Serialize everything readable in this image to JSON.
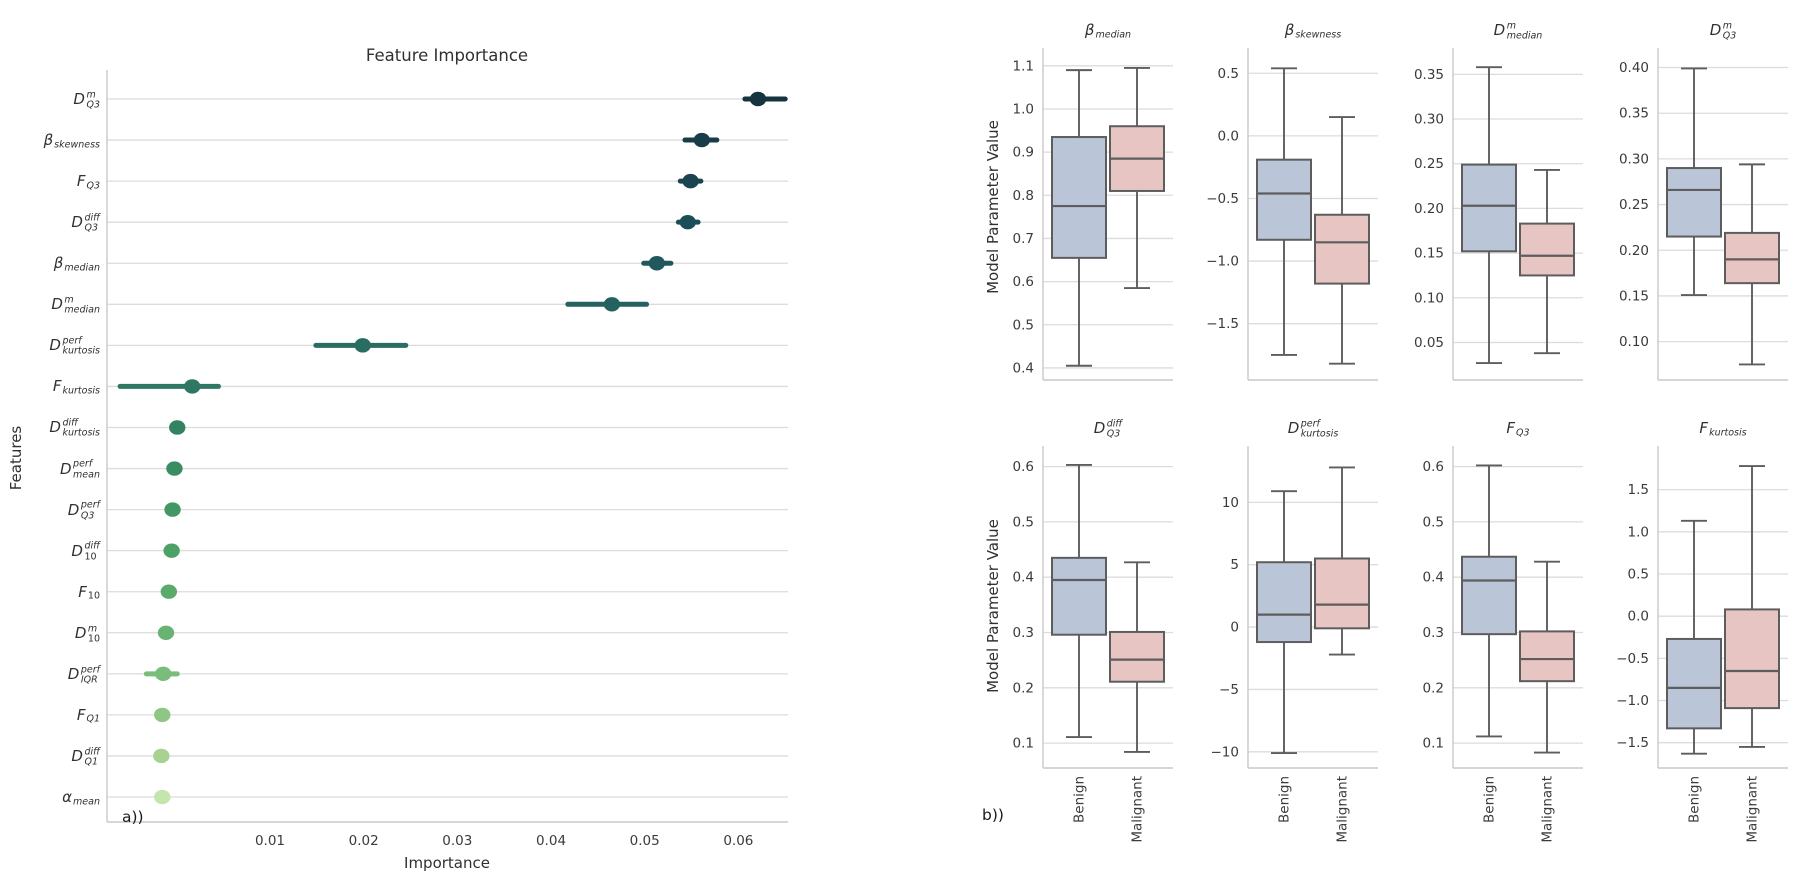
{
  "figure": {
    "background": "#ffffff",
    "grid_color": "#dcdcdc",
    "spine_color": "#c9c9c9",
    "text_color": "#3b3b3b"
  },
  "chart_data": [
    {
      "id": "feature-importance",
      "type": "scatter",
      "title": "Feature Importance",
      "xlabel": "Importance",
      "ylabel": "Features",
      "panel_label": "a))",
      "grid": "horizontal",
      "legend": "none",
      "xlim": [
        -0.0074,
        0.0653
      ],
      "xtick_vals": [
        0.01,
        0.02,
        0.03,
        0.04,
        0.05,
        0.06
      ],
      "xtick_labels": [
        "0.01",
        "0.02",
        "0.03",
        "0.04",
        "0.05",
        "0.06"
      ],
      "features": [
        {
          "label": "D_Q3^m",
          "base": "D",
          "sup": "m",
          "sub": "Q3",
          "importance": 0.0621,
          "ci": [
            0.0607,
            0.065
          ],
          "color": "#17333f"
        },
        {
          "label": "β_skewness",
          "base": "β",
          "sup": "",
          "sub": "skewness",
          "importance": 0.0561,
          "ci": [
            0.0543,
            0.0577
          ],
          "color": "#183c48"
        },
        {
          "label": "F_Q3",
          "base": "F",
          "sup": "",
          "sub": "Q3",
          "importance": 0.0549,
          "ci": [
            0.0538,
            0.056
          ],
          "color": "#1a4550"
        },
        {
          "label": "D_Q3^diff",
          "base": "D",
          "sup": "diff",
          "sub": "Q3",
          "importance": 0.0546,
          "ci": [
            0.0536,
            0.0557
          ],
          "color": "#1c4e57"
        },
        {
          "label": "β_median",
          "base": "β",
          "sup": "",
          "sub": "median",
          "importance": 0.0513,
          "ci": [
            0.0499,
            0.0528
          ],
          "color": "#20585d"
        },
        {
          "label": "D_median^m",
          "base": "D",
          "sup": "m",
          "sub": "median",
          "importance": 0.0465,
          "ci": [
            0.0418,
            0.0502
          ],
          "color": "#246260"
        },
        {
          "label": "D_kurtosis^perf",
          "base": "D",
          "sup": "perf",
          "sub": "kurtosis",
          "importance": 0.0199,
          "ci": [
            0.0149,
            0.0245
          ],
          "color": "#296d62"
        },
        {
          "label": "F_kurtosis",
          "base": "F",
          "sup": "",
          "sub": "kurtosis",
          "importance": 0.0017,
          "ci": [
            -0.006,
            0.0045
          ],
          "color": "#2e7863"
        },
        {
          "label": "D_kurtosis^diff",
          "base": "D",
          "sup": "diff",
          "sub": "kurtosis",
          "importance": 0.0001,
          "ci": [
            -0.0004,
            0.0006
          ],
          "color": "#338363"
        },
        {
          "label": "D_mean^perf",
          "base": "D",
          "sup": "perf",
          "sub": "mean",
          "importance": -0.0002,
          "ci": [
            -0.0006,
            0.0002
          ],
          "color": "#3a8d63"
        },
        {
          "label": "D_Q3^perf",
          "base": "D",
          "sup": "perf",
          "sub": "Q3",
          "importance": -0.0004,
          "ci": [
            -0.0008,
            0.0
          ],
          "color": "#429763"
        },
        {
          "label": "D_10^diff",
          "base": "D",
          "sup": "diff",
          "sub": "10",
          "importance": -0.0005,
          "ci": [
            -0.0009,
            -0.0001
          ],
          "color": "#4ca167"
        },
        {
          "label": "F_10",
          "base": "F",
          "sup": "",
          "sub": "10",
          "importance": -0.0008,
          "ci": [
            -0.0012,
            -0.0004
          ],
          "color": "#59aa6b"
        },
        {
          "label": "D_10^m",
          "base": "D",
          "sup": "m",
          "sub": "10",
          "importance": -0.0011,
          "ci": [
            -0.0015,
            -0.0007
          ],
          "color": "#68b371"
        },
        {
          "label": "D_IQR^perf",
          "base": "D",
          "sup": "perf",
          "sub": "IQR",
          "importance": -0.0014,
          "ci": [
            -0.0032,
            0.0001
          ],
          "color": "#7abc79"
        },
        {
          "label": "F_Q1",
          "base": "F",
          "sup": "",
          "sub": "Q1",
          "importance": -0.0015,
          "ci": [
            -0.0018,
            -0.0012
          ],
          "color": "#8ec683"
        },
        {
          "label": "D_Q1^diff",
          "base": "D",
          "sup": "diff",
          "sub": "Q1",
          "importance": -0.0016,
          "ci": [
            -0.0019,
            -0.0013
          ],
          "color": "#a7d290"
        },
        {
          "label": "α_mean",
          "base": "α",
          "sup": "",
          "sub": "mean",
          "importance": -0.0015,
          "ci": [
            -0.0017,
            -0.0013
          ],
          "color": "#c6e5ad"
        }
      ]
    },
    {
      "id": "model-parameter-boxplots",
      "type": "boxplot",
      "ylabel": "Model Parameter Value",
      "panel_label": "b))",
      "categories": [
        "Benign",
        "Malignant"
      ],
      "series_colors": {
        "Benign": "#bac6d8",
        "Malignant": "#e6c5c3"
      },
      "edge_color": "#5d5d5d",
      "subplots": [
        {
          "title": "β_median",
          "base": "β",
          "sup": "",
          "sub": "median",
          "ylim": [
            0.372,
            1.132
          ],
          "ytick_vals": [
            1.1,
            1.0,
            0.9,
            0.8,
            0.7,
            0.6,
            0.5,
            0.4
          ],
          "ytick_labels": [
            "1.1",
            "1.0",
            "0.9",
            "0.8",
            "0.7",
            "0.6",
            "0.5",
            "0.4"
          ],
          "boxes": [
            {
              "category": "Benign",
              "whislo": 0.405,
              "q1": 0.655,
              "med": 0.775,
              "q3": 0.935,
              "whishi": 1.09
            },
            {
              "category": "Malignant",
              "whislo": 0.585,
              "q1": 0.81,
              "med": 0.885,
              "q3": 0.96,
              "whishi": 1.095
            }
          ]
        },
        {
          "title": "β_skewness",
          "base": "β",
          "sup": "",
          "sub": "skewness",
          "ylim": [
            -1.95,
            0.67
          ],
          "ytick_vals": [
            0.5,
            0.0,
            -0.5,
            -1.0,
            -1.5
          ],
          "ytick_labels": [
            "0.5",
            "0.0",
            "−0.5",
            "−1.0",
            "−1.5"
          ],
          "boxes": [
            {
              "category": "Benign",
              "whislo": -1.75,
              "q1": -0.83,
              "med": -0.46,
              "q3": -0.19,
              "whishi": 0.54
            },
            {
              "category": "Malignant",
              "whislo": -1.82,
              "q1": -1.18,
              "med": -0.85,
              "q3": -0.63,
              "whishi": 0.15
            }
          ]
        },
        {
          "title": "D_median^m",
          "base": "D",
          "sup": "m",
          "sub": "median",
          "ylim": [
            0.008,
            0.375
          ],
          "ytick_vals": [
            0.35,
            0.3,
            0.25,
            0.2,
            0.15,
            0.1,
            0.05
          ],
          "ytick_labels": [
            "0.35",
            "0.30",
            "0.25",
            "0.20",
            "0.15",
            "0.10",
            "0.05"
          ],
          "boxes": [
            {
              "category": "Benign",
              "whislo": 0.027,
              "q1": 0.152,
              "med": 0.203,
              "q3": 0.249,
              "whishi": 0.358
            },
            {
              "category": "Malignant",
              "whislo": 0.038,
              "q1": 0.125,
              "med": 0.147,
              "q3": 0.183,
              "whishi": 0.243
            }
          ]
        },
        {
          "title": "D_Q3^m",
          "base": "D",
          "sup": "m",
          "sub": "Q3",
          "ylim": [
            0.058,
            0.417
          ],
          "ytick_vals": [
            0.4,
            0.35,
            0.3,
            0.25,
            0.2,
            0.15,
            0.1
          ],
          "ytick_labels": [
            "0.40",
            "0.35",
            "0.30",
            "0.25",
            "0.20",
            "0.15",
            "0.10"
          ],
          "boxes": [
            {
              "category": "Benign",
              "whislo": 0.151,
              "q1": 0.215,
              "med": 0.266,
              "q3": 0.29,
              "whishi": 0.399
            },
            {
              "category": "Malignant",
              "whislo": 0.075,
              "q1": 0.164,
              "med": 0.19,
              "q3": 0.219,
              "whishi": 0.294
            }
          ]
        },
        {
          "title": "D_Q3^diff",
          "base": "D",
          "sup": "diff",
          "sub": "Q3",
          "ylim": [
            0.055,
            0.63
          ],
          "ytick_vals": [
            0.6,
            0.5,
            0.4,
            0.3,
            0.2,
            0.1
          ],
          "ytick_labels": [
            "0.6",
            "0.5",
            "0.4",
            "0.3",
            "0.2",
            "0.1"
          ],
          "boxes": [
            {
              "category": "Benign",
              "whislo": 0.111,
              "q1": 0.296,
              "med": 0.395,
              "q3": 0.435,
              "whishi": 0.603
            },
            {
              "category": "Malignant",
              "whislo": 0.084,
              "q1": 0.211,
              "med": 0.251,
              "q3": 0.301,
              "whishi": 0.427
            }
          ]
        },
        {
          "title": "D_kurtosis^perf",
          "base": "D",
          "sup": "perf",
          "sub": "kurtosis",
          "ylim": [
            -11.3,
            14.2
          ],
          "ytick_vals": [
            10,
            5,
            0,
            -5,
            -10
          ],
          "ytick_labels": [
            "10",
            "5",
            "0",
            "−5",
            "−10"
          ],
          "boxes": [
            {
              "category": "Benign",
              "whislo": -10.1,
              "q1": -1.2,
              "med": 1.0,
              "q3": 5.2,
              "whishi": 10.9
            },
            {
              "category": "Malignant",
              "whislo": -2.2,
              "q1": -0.1,
              "med": 1.8,
              "q3": 5.5,
              "whishi": 12.8
            }
          ]
        },
        {
          "title": "F_Q3",
          "base": "F",
          "sup": "",
          "sub": "Q3",
          "ylim": [
            0.055,
            0.63
          ],
          "ytick_vals": [
            0.6,
            0.5,
            0.4,
            0.3,
            0.2,
            0.1
          ],
          "ytick_labels": [
            "0.6",
            "0.5",
            "0.4",
            "0.3",
            "0.2",
            "0.1"
          ],
          "boxes": [
            {
              "category": "Benign",
              "whislo": 0.112,
              "q1": 0.297,
              "med": 0.394,
              "q3": 0.437,
              "whishi": 0.602
            },
            {
              "category": "Malignant",
              "whislo": 0.083,
              "q1": 0.212,
              "med": 0.252,
              "q3": 0.302,
              "whishi": 0.428
            }
          ]
        },
        {
          "title": "F_kurtosis",
          "base": "F",
          "sup": "",
          "sub": "kurtosis",
          "ylim": [
            -1.8,
            1.97
          ],
          "ytick_vals": [
            1.5,
            1.0,
            0.5,
            0.0,
            -0.5,
            -1.0,
            -1.5
          ],
          "ytick_labels": [
            "1.5",
            "1.0",
            "0.5",
            "0.0",
            "−0.5",
            "−1.0",
            "−1.5"
          ],
          "boxes": [
            {
              "category": "Benign",
              "whislo": -1.63,
              "q1": -1.33,
              "med": -0.85,
              "q3": -0.27,
              "whishi": 1.13
            },
            {
              "category": "Malignant",
              "whislo": -1.55,
              "q1": -1.09,
              "med": -0.65,
              "q3": 0.08,
              "whishi": 1.78
            }
          ]
        }
      ]
    }
  ]
}
